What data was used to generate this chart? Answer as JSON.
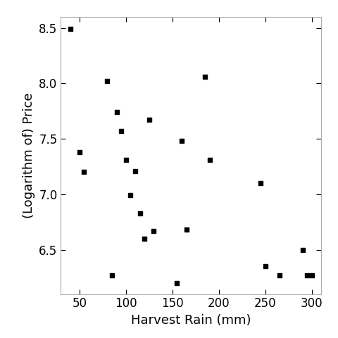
{
  "x": [
    40,
    50,
    55,
    80,
    85,
    90,
    95,
    100,
    105,
    110,
    115,
    120,
    125,
    130,
    155,
    160,
    165,
    185,
    190,
    245,
    250,
    265,
    290,
    295,
    300
  ],
  "y": [
    8.49,
    7.38,
    7.2,
    8.02,
    6.27,
    7.74,
    7.57,
    7.31,
    6.99,
    7.21,
    6.83,
    6.6,
    7.67,
    6.67,
    6.2,
    7.48,
    6.68,
    8.06,
    7.31,
    7.1,
    6.35,
    6.27,
    6.5,
    6.27,
    6.27
  ],
  "xlabel": "Harvest Rain (mm)",
  "ylabel": "(Logarithm of) Price",
  "xlim": [
    30,
    310
  ],
  "ylim": [
    6.1,
    8.6
  ],
  "xticks": [
    50,
    100,
    150,
    200,
    250,
    300
  ],
  "yticks": [
    6.5,
    7.0,
    7.5,
    8.0,
    8.5
  ],
  "marker": "s",
  "marker_size": 5,
  "marker_color": "black",
  "bg_color": "white",
  "spine_color": "#aaaaaa",
  "xlabel_fontsize": 13,
  "ylabel_fontsize": 13,
  "tick_fontsize": 12
}
